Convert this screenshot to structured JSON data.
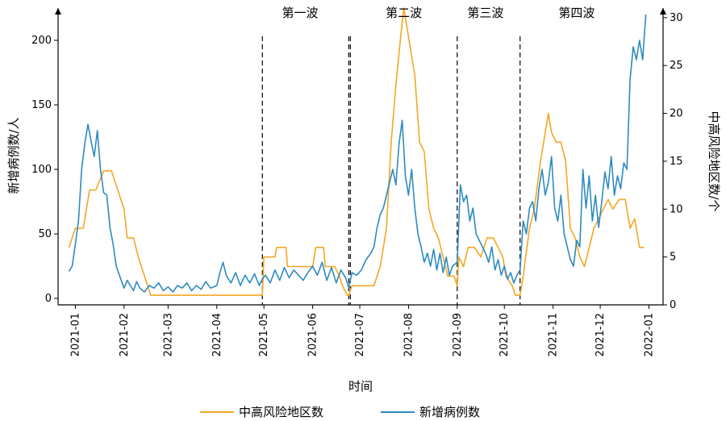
{
  "chart_data": {
    "type": "line",
    "xlabel": "时间",
    "ylabel_left": "新增病例数/人",
    "ylabel_right": "中高风险地区数/个",
    "y_left_lim": [
      -5,
      225
    ],
    "y_left_ticks": [
      0,
      50,
      100,
      150,
      200
    ],
    "y_right_lim": [
      0,
      31
    ],
    "y_right_ticks": [
      0,
      5,
      10,
      15,
      20,
      25,
      30
    ],
    "x_ticks": [
      "2021-01-01",
      "2021-02-01",
      "2021-03-01",
      "2021-04-01",
      "2021-05-01",
      "2021-06-01",
      "2021-07-01",
      "2021-08-01",
      "2021-09-01",
      "2021-10-01",
      "2021-11-01",
      "2021-12-01",
      "2022-01-01"
    ],
    "x_tick_labels": [
      "2021-01",
      "2021-02",
      "2021-03",
      "2021-04",
      "2021-05",
      "2021-06",
      "2021-07",
      "2021-08",
      "2021-09",
      "2021-10",
      "2021-11",
      "2021-12",
      "2022-01"
    ],
    "dividers": [
      "2021-04-30",
      "2021-06-24",
      "2021-06-25",
      "2021-09-01",
      "2021-10-11"
    ],
    "wave_labels": [
      {
        "text": "第一波",
        "date": "2021-05-24"
      },
      {
        "text": "第二波",
        "date": "2021-07-29"
      },
      {
        "text": "第三波",
        "date": "2021-09-19"
      },
      {
        "text": "第四波",
        "date": "2021-11-16"
      }
    ],
    "legend_position": "bottom",
    "series": [
      {
        "name": "中高风险地区数",
        "axis": "right",
        "color": "#f5a623",
        "points": [
          [
            "2020-12-28",
            6
          ],
          [
            "2021-01-01",
            8
          ],
          [
            "2021-01-06",
            8
          ],
          [
            "2021-01-10",
            12
          ],
          [
            "2021-01-14",
            12
          ],
          [
            "2021-01-19",
            14
          ],
          [
            "2021-01-24",
            14
          ],
          [
            "2021-01-26",
            13
          ],
          [
            "2021-01-28",
            12
          ],
          [
            "2021-02-01",
            10
          ],
          [
            "2021-02-03",
            7
          ],
          [
            "2021-02-07",
            7
          ],
          [
            "2021-02-10",
            5
          ],
          [
            "2021-02-14",
            3
          ],
          [
            "2021-02-18",
            1
          ],
          [
            "2021-03-01",
            1
          ],
          [
            "2021-04-01",
            1
          ],
          [
            "2021-04-20",
            1
          ],
          [
            "2021-04-30",
            1
          ],
          [
            "2021-05-01",
            5
          ],
          [
            "2021-05-08",
            5
          ],
          [
            "2021-05-09",
            6
          ],
          [
            "2021-05-15",
            6
          ],
          [
            "2021-05-16",
            4
          ],
          [
            "2021-06-01",
            4
          ],
          [
            "2021-06-03",
            6
          ],
          [
            "2021-06-08",
            6
          ],
          [
            "2021-06-09",
            4
          ],
          [
            "2021-06-15",
            4
          ],
          [
            "2021-06-18",
            3
          ],
          [
            "2021-06-20",
            2
          ],
          [
            "2021-06-23",
            1
          ],
          [
            "2021-06-24",
            1
          ],
          [
            "2021-06-26",
            2
          ],
          [
            "2021-07-10",
            2
          ],
          [
            "2021-07-14",
            4
          ],
          [
            "2021-07-18",
            8
          ],
          [
            "2021-07-21",
            17
          ],
          [
            "2021-07-24",
            23
          ],
          [
            "2021-07-27",
            28
          ],
          [
            "2021-07-29",
            31
          ],
          [
            "2021-08-01",
            28
          ],
          [
            "2021-08-05",
            24
          ],
          [
            "2021-08-08",
            17
          ],
          [
            "2021-08-11",
            16
          ],
          [
            "2021-08-14",
            10
          ],
          [
            "2021-08-17",
            8
          ],
          [
            "2021-08-20",
            7
          ],
          [
            "2021-08-23",
            5
          ],
          [
            "2021-08-26",
            3
          ],
          [
            "2021-08-30",
            3
          ],
          [
            "2021-09-01",
            2
          ],
          [
            "2021-09-02",
            5
          ],
          [
            "2021-09-05",
            4
          ],
          [
            "2021-09-08",
            6
          ],
          [
            "2021-09-12",
            6
          ],
          [
            "2021-09-16",
            5
          ],
          [
            "2021-09-20",
            7
          ],
          [
            "2021-09-24",
            7
          ],
          [
            "2021-09-27",
            6
          ],
          [
            "2021-09-30",
            5
          ],
          [
            "2021-10-02",
            3
          ],
          [
            "2021-10-06",
            2
          ],
          [
            "2021-10-08",
            1
          ],
          [
            "2021-10-11",
            1
          ],
          [
            "2021-10-13",
            3
          ],
          [
            "2021-10-17",
            8
          ],
          [
            "2021-10-20",
            10
          ],
          [
            "2021-10-24",
            15
          ],
          [
            "2021-10-27",
            18
          ],
          [
            "2021-10-29",
            20
          ],
          [
            "2021-10-31",
            18
          ],
          [
            "2021-11-03",
            17
          ],
          [
            "2021-11-06",
            17
          ],
          [
            "2021-11-09",
            15
          ],
          [
            "2021-11-12",
            8
          ],
          [
            "2021-11-15",
            7
          ],
          [
            "2021-11-18",
            5
          ],
          [
            "2021-11-21",
            4
          ],
          [
            "2021-11-24",
            6
          ],
          [
            "2021-11-27",
            8
          ],
          [
            "2021-11-30",
            9
          ],
          [
            "2021-12-03",
            10
          ],
          [
            "2021-12-06",
            11
          ],
          [
            "2021-12-09",
            10
          ],
          [
            "2021-12-13",
            11
          ],
          [
            "2021-12-17",
            11
          ],
          [
            "2021-12-20",
            8
          ],
          [
            "2021-12-23",
            9
          ],
          [
            "2021-12-26",
            6
          ],
          [
            "2021-12-29",
            6
          ]
        ]
      },
      {
        "name": "新增病例数",
        "axis": "left",
        "color": "#2e8bc0",
        "points": [
          [
            "2020-12-28",
            21
          ],
          [
            "2020-12-30",
            25
          ],
          [
            "2021-01-01",
            42
          ],
          [
            "2021-01-03",
            60
          ],
          [
            "2021-01-05",
            100
          ],
          [
            "2021-01-07",
            120
          ],
          [
            "2021-01-09",
            135
          ],
          [
            "2021-01-11",
            122
          ],
          [
            "2021-01-13",
            110
          ],
          [
            "2021-01-15",
            130
          ],
          [
            "2021-01-17",
            100
          ],
          [
            "2021-01-19",
            82
          ],
          [
            "2021-01-21",
            80
          ],
          [
            "2021-01-23",
            55
          ],
          [
            "2021-01-25",
            42
          ],
          [
            "2021-01-27",
            25
          ],
          [
            "2021-01-29",
            18
          ],
          [
            "2021-02-01",
            8
          ],
          [
            "2021-02-03",
            14
          ],
          [
            "2021-02-05",
            10
          ],
          [
            "2021-02-07",
            6
          ],
          [
            "2021-02-09",
            13
          ],
          [
            "2021-02-11",
            8
          ],
          [
            "2021-02-14",
            5
          ],
          [
            "2021-02-17",
            10
          ],
          [
            "2021-02-20",
            8
          ],
          [
            "2021-02-23",
            12
          ],
          [
            "2021-02-26",
            6
          ],
          [
            "2021-03-01",
            9
          ],
          [
            "2021-03-04",
            5
          ],
          [
            "2021-03-07",
            10
          ],
          [
            "2021-03-10",
            8
          ],
          [
            "2021-03-13",
            12
          ],
          [
            "2021-03-16",
            6
          ],
          [
            "2021-03-19",
            10
          ],
          [
            "2021-03-22",
            7
          ],
          [
            "2021-03-25",
            13
          ],
          [
            "2021-03-28",
            8
          ],
          [
            "2021-04-01",
            10
          ],
          [
            "2021-04-03",
            20
          ],
          [
            "2021-04-05",
            28
          ],
          [
            "2021-04-07",
            18
          ],
          [
            "2021-04-10",
            12
          ],
          [
            "2021-04-13",
            20
          ],
          [
            "2021-04-16",
            10
          ],
          [
            "2021-04-19",
            18
          ],
          [
            "2021-04-22",
            12
          ],
          [
            "2021-04-25",
            19
          ],
          [
            "2021-04-28",
            10
          ],
          [
            "2021-04-30",
            15
          ],
          [
            "2021-05-02",
            18
          ],
          [
            "2021-05-05",
            12
          ],
          [
            "2021-05-08",
            22
          ],
          [
            "2021-05-11",
            14
          ],
          [
            "2021-05-14",
            24
          ],
          [
            "2021-05-17",
            16
          ],
          [
            "2021-05-20",
            22
          ],
          [
            "2021-05-23",
            18
          ],
          [
            "2021-05-26",
            14
          ],
          [
            "2021-05-29",
            20
          ],
          [
            "2021-06-01",
            25
          ],
          [
            "2021-06-04",
            18
          ],
          [
            "2021-06-07",
            28
          ],
          [
            "2021-06-10",
            14
          ],
          [
            "2021-06-13",
            24
          ],
          [
            "2021-06-16",
            12
          ],
          [
            "2021-06-19",
            22
          ],
          [
            "2021-06-22",
            16
          ],
          [
            "2021-06-24",
            8
          ],
          [
            "2021-06-26",
            20
          ],
          [
            "2021-06-29",
            18
          ],
          [
            "2021-07-02",
            22
          ],
          [
            "2021-07-05",
            30
          ],
          [
            "2021-07-08",
            35
          ],
          [
            "2021-07-10",
            40
          ],
          [
            "2021-07-12",
            55
          ],
          [
            "2021-07-14",
            65
          ],
          [
            "2021-07-16",
            70
          ],
          [
            "2021-07-18",
            80
          ],
          [
            "2021-07-20",
            90
          ],
          [
            "2021-07-22",
            100
          ],
          [
            "2021-07-24",
            88
          ],
          [
            "2021-07-26",
            120
          ],
          [
            "2021-07-28",
            138
          ],
          [
            "2021-07-30",
            95
          ],
          [
            "2021-08-01",
            80
          ],
          [
            "2021-08-03",
            100
          ],
          [
            "2021-08-05",
            70
          ],
          [
            "2021-08-07",
            50
          ],
          [
            "2021-08-09",
            40
          ],
          [
            "2021-08-11",
            28
          ],
          [
            "2021-08-13",
            35
          ],
          [
            "2021-08-15",
            25
          ],
          [
            "2021-08-17",
            38
          ],
          [
            "2021-08-19",
            22
          ],
          [
            "2021-08-21",
            35
          ],
          [
            "2021-08-23",
            20
          ],
          [
            "2021-08-25",
            32
          ],
          [
            "2021-08-27",
            18
          ],
          [
            "2021-08-29",
            25
          ],
          [
            "2021-09-01",
            28
          ],
          [
            "2021-09-03",
            88
          ],
          [
            "2021-09-05",
            75
          ],
          [
            "2021-09-07",
            80
          ],
          [
            "2021-09-09",
            60
          ],
          [
            "2021-09-11",
            70
          ],
          [
            "2021-09-13",
            50
          ],
          [
            "2021-09-15",
            45
          ],
          [
            "2021-09-17",
            40
          ],
          [
            "2021-09-19",
            35
          ],
          [
            "2021-09-21",
            28
          ],
          [
            "2021-09-23",
            40
          ],
          [
            "2021-09-25",
            22
          ],
          [
            "2021-09-27",
            30
          ],
          [
            "2021-09-29",
            18
          ],
          [
            "2021-10-01",
            25
          ],
          [
            "2021-10-03",
            15
          ],
          [
            "2021-10-05",
            20
          ],
          [
            "2021-10-07",
            12
          ],
          [
            "2021-10-09",
            18
          ],
          [
            "2021-10-11",
            22
          ],
          [
            "2021-10-13",
            60
          ],
          [
            "2021-10-15",
            50
          ],
          [
            "2021-10-17",
            70
          ],
          [
            "2021-10-19",
            75
          ],
          [
            "2021-10-21",
            60
          ],
          [
            "2021-10-23",
            85
          ],
          [
            "2021-10-25",
            100
          ],
          [
            "2021-10-27",
            80
          ],
          [
            "2021-10-29",
            90
          ],
          [
            "2021-10-31",
            110
          ],
          [
            "2021-11-02",
            70
          ],
          [
            "2021-11-04",
            60
          ],
          [
            "2021-11-06",
            80
          ],
          [
            "2021-11-08",
            50
          ],
          [
            "2021-11-10",
            40
          ],
          [
            "2021-11-12",
            30
          ],
          [
            "2021-11-14",
            25
          ],
          [
            "2021-11-16",
            45
          ],
          [
            "2021-11-18",
            40
          ],
          [
            "2021-11-20",
            100
          ],
          [
            "2021-11-22",
            70
          ],
          [
            "2021-11-24",
            95
          ],
          [
            "2021-11-26",
            60
          ],
          [
            "2021-11-28",
            80
          ],
          [
            "2021-11-30",
            55
          ],
          [
            "2021-12-02",
            75
          ],
          [
            "2021-12-04",
            98
          ],
          [
            "2021-12-06",
            85
          ],
          [
            "2021-12-08",
            110
          ],
          [
            "2021-12-10",
            80
          ],
          [
            "2021-12-12",
            95
          ],
          [
            "2021-12-14",
            85
          ],
          [
            "2021-12-16",
            105
          ],
          [
            "2021-12-18",
            100
          ],
          [
            "2021-12-20",
            170
          ],
          [
            "2021-12-22",
            195
          ],
          [
            "2021-12-24",
            185
          ],
          [
            "2021-12-26",
            200
          ],
          [
            "2021-12-28",
            185
          ],
          [
            "2021-12-30",
            220
          ]
        ]
      }
    ]
  }
}
